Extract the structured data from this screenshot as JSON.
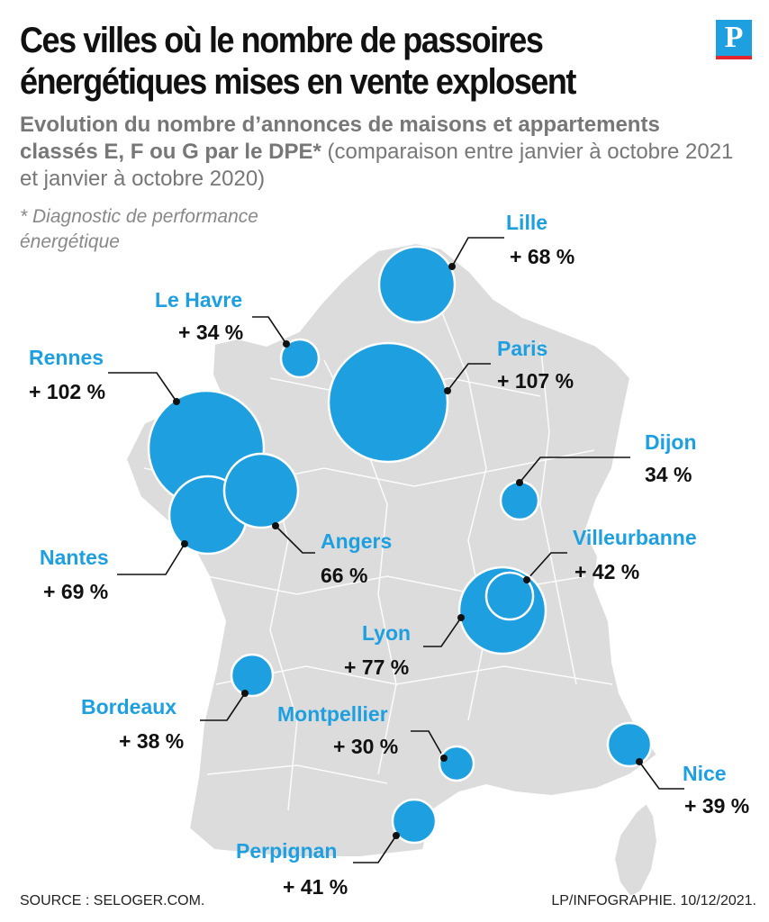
{
  "header": {
    "title": "Ces villes où le nombre de passoires énergétiques mises en vente explosent",
    "subtitle_bold": "Evolution du nombre d’annonces de maisons et appartements classés E, F ou G par le DPE*",
    "subtitle_regular": " (comparaison entre janvier à octobre 2021 et janvier à octobre 2020)",
    "note": "* Diagnostic de performance énergétique"
  },
  "logo": {
    "letter": "P",
    "icon": "le-parisien-logo"
  },
  "colors": {
    "bubble": "#1d9fe0",
    "land": "#dcdcdc",
    "label": "#1d9fe0",
    "value": "#111111"
  },
  "map": {
    "base": "France",
    "cities": [
      {
        "name": "Lille",
        "value": "+ 68 %"
      },
      {
        "name": "Le Havre",
        "value": "+ 34 %"
      },
      {
        "name": "Paris",
        "value": "+ 107 %"
      },
      {
        "name": "Rennes",
        "value": "+ 102 %"
      },
      {
        "name": "Dijon",
        "value": "34 %"
      },
      {
        "name": "Angers",
        "value": "66 %"
      },
      {
        "name": "Nantes",
        "value": "+ 69 %"
      },
      {
        "name": "Villeurbanne",
        "value": "+ 42 %"
      },
      {
        "name": "Lyon",
        "value": "+ 77 %"
      },
      {
        "name": "Bordeaux",
        "value": "+ 38 %"
      },
      {
        "name": "Montpellier",
        "value": "+ 30 %"
      },
      {
        "name": "Nice",
        "value": "+ 39 %"
      },
      {
        "name": "Perpignan",
        "value": "+ 41 %"
      }
    ]
  },
  "footer": {
    "source": "SOURCE : SELOGER.COM.",
    "credit": "LP/INFOGRAPHIE.  10/12/2021."
  }
}
